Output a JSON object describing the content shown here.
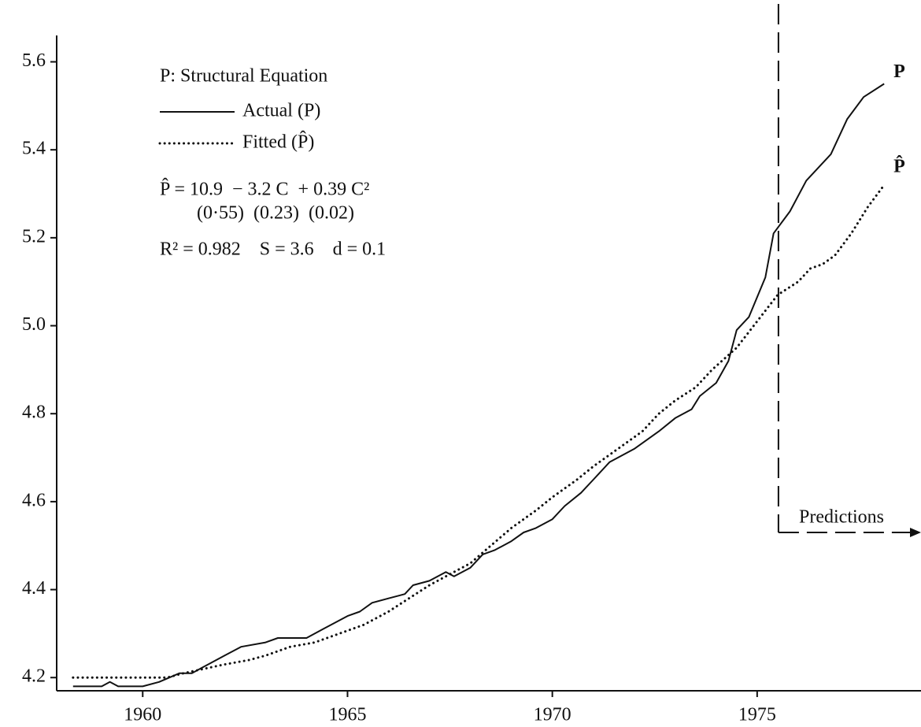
{
  "chart_data": {
    "type": "line",
    "title": "P: Structural Equation",
    "annotations": [
      "P̂ = 10.9  − 3.2 C  + 0.39 C²",
      "(0·55)  (0.23)  (0.02)",
      "R² = 0.982    S = 3.6    d = 0.1",
      "Predictions"
    ],
    "prediction_start": 1975.52,
    "xlim": [
      1957.9,
      1979.0
    ],
    "xticks": [
      1960,
      1965,
      1970,
      1975
    ],
    "ylim": [
      4.17,
      5.66
    ],
    "yticks": [
      {
        "value": 4.2,
        "label": "4.2"
      },
      {
        "value": 4.4,
        "label": "4.4"
      },
      {
        "value": 4.6,
        "label": "4.6"
      },
      {
        "value": 4.8,
        "label": "4.8"
      },
      {
        "value": 5.0,
        "label": "5.0"
      },
      {
        "value": 5.2,
        "label": "5.2"
      },
      {
        "value": 5.4,
        "label": "5.4"
      },
      {
        "value": 5.6,
        "label": "5.6"
      }
    ],
    "grid": false,
    "series": [
      {
        "name": "Actual (P)",
        "label": "P",
        "color": "#111111",
        "style": "solid",
        "x": [
          1958.3,
          1959.0,
          1959.2,
          1959.4,
          1960.0,
          1960.4,
          1960.9,
          1961.2,
          1961.6,
          1962.0,
          1962.4,
          1963.0,
          1963.3,
          1964.0,
          1964.4,
          1965.0,
          1965.3,
          1965.6,
          1966.0,
          1966.4,
          1966.6,
          1967.0,
          1967.4,
          1967.6,
          1968.0,
          1968.3,
          1968.6,
          1969.0,
          1969.3,
          1969.6,
          1970.0,
          1970.3,
          1970.7,
          1971.0,
          1971.4,
          1972.0,
          1972.6,
          1973.0,
          1973.4,
          1973.6,
          1974.0,
          1974.3,
          1974.5,
          1974.8,
          1975.2,
          1975.4,
          1975.8,
          1976.2,
          1976.8,
          1977.2,
          1977.6,
          1978.1
        ],
        "values": [
          4.18,
          4.18,
          4.19,
          4.18,
          4.18,
          4.19,
          4.21,
          4.21,
          4.23,
          4.25,
          4.27,
          4.28,
          4.29,
          4.29,
          4.31,
          4.34,
          4.35,
          4.37,
          4.38,
          4.39,
          4.41,
          4.42,
          4.44,
          4.43,
          4.45,
          4.48,
          4.49,
          4.51,
          4.53,
          4.54,
          4.56,
          4.59,
          4.62,
          4.65,
          4.69,
          4.72,
          4.76,
          4.79,
          4.81,
          4.84,
          4.87,
          4.92,
          4.99,
          5.02,
          5.11,
          5.21,
          5.26,
          5.33,
          5.39,
          5.47,
          5.52,
          5.55
        ]
      },
      {
        "name": "Fitted (P̂)",
        "label": "P̂",
        "color": "#111111",
        "style": "dotted",
        "x": [
          1958.3,
          1959.0,
          1960.0,
          1960.6,
          1961.0,
          1961.5,
          1962.0,
          1962.6,
          1963.0,
          1963.6,
          1964.2,
          1964.8,
          1965.4,
          1966.0,
          1966.5,
          1967.0,
          1967.6,
          1968.0,
          1968.5,
          1969.0,
          1969.6,
          1970.0,
          1970.6,
          1971.0,
          1971.6,
          1972.2,
          1972.6,
          1973.0,
          1973.5,
          1973.9,
          1974.5,
          1975.0,
          1975.5,
          1976.0,
          1976.3,
          1976.6,
          1976.9,
          1977.3,
          1977.7,
          1978.1
        ],
        "values": [
          4.2,
          4.2,
          4.2,
          4.2,
          4.21,
          4.22,
          4.23,
          4.24,
          4.25,
          4.27,
          4.28,
          4.3,
          4.32,
          4.35,
          4.38,
          4.41,
          4.44,
          4.46,
          4.5,
          4.54,
          4.58,
          4.61,
          4.65,
          4.68,
          4.72,
          4.76,
          4.8,
          4.83,
          4.86,
          4.9,
          4.95,
          5.01,
          5.07,
          5.1,
          5.13,
          5.14,
          5.16,
          5.21,
          5.27,
          5.32
        ]
      }
    ]
  }
}
